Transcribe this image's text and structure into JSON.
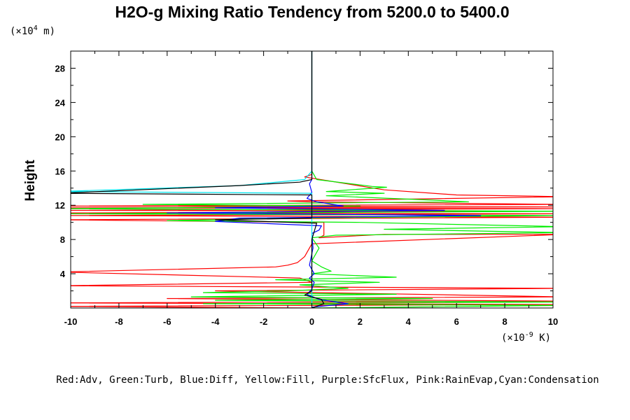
{
  "chart_data": {
    "type": "line",
    "title": "H2O-g Mixing Ratio Tendency from 5200.0 to 5400.0",
    "ylabel": "Height",
    "y_unit_prefix": "(×10",
    "y_unit_exp": "4",
    "y_unit_suffix": " m)",
    "x_unit_prefix": "(×10",
    "x_unit_exp": "-9",
    "x_unit_suffix": " K)",
    "xlim": [
      -10,
      10
    ],
    "ylim": [
      0,
      30
    ],
    "x_ticks": [
      -10,
      -8,
      -6,
      -4,
      -2,
      0,
      2,
      4,
      6,
      8,
      10
    ],
    "y_ticks": [
      4,
      8,
      12,
      16,
      20,
      24,
      28
    ],
    "legend_text": "Red:Adv, Green:Turb, Blue:Diff, Yellow:Fill, Purple:SfcFlux, Pink:RainEvap,Cyan:Condensation",
    "colors": {
      "Adv": "#ff0000",
      "Turb": "#00ee00",
      "Diff": "#0000ff",
      "Condensation": "#00e5ee",
      "Net": "#000000"
    },
    "series": [
      {
        "key": "Adv",
        "points": [
          [
            0,
            30
          ],
          [
            0,
            15.6
          ],
          [
            -0.3,
            15.3
          ],
          [
            3,
            13.8
          ],
          [
            6,
            13.2
          ],
          [
            10.5,
            13
          ],
          [
            -1,
            12.5
          ],
          [
            0,
            12.4
          ],
          [
            10.5,
            12.1
          ],
          [
            -10.5,
            11.9
          ],
          [
            10.5,
            11.8
          ],
          [
            -10.5,
            11.7
          ],
          [
            10.5,
            11.6
          ],
          [
            -10.5,
            11.4
          ],
          [
            10.5,
            11.3
          ],
          [
            -10.5,
            11.1
          ],
          [
            10.5,
            11.0
          ],
          [
            -10.5,
            10.8
          ],
          [
            10.5,
            10.6
          ],
          [
            -10.5,
            10.3
          ],
          [
            0.5,
            10.0
          ],
          [
            0.5,
            8.5
          ],
          [
            0.3,
            8.2
          ],
          [
            3,
            8.6
          ],
          [
            10.5,
            8.6
          ],
          [
            0,
            7.5
          ],
          [
            -0.3,
            6
          ],
          [
            -0.6,
            5.3
          ],
          [
            -1,
            5.0
          ],
          [
            -1.5,
            4.8
          ],
          [
            -10.5,
            4.2
          ],
          [
            -0.5,
            3.5
          ],
          [
            0,
            3.0
          ],
          [
            -10.5,
            2.6
          ],
          [
            10.5,
            2.3
          ],
          [
            -4,
            2.0
          ],
          [
            10.5,
            1.3
          ],
          [
            -6,
            1.1
          ],
          [
            10.5,
            0.8
          ],
          [
            -10.5,
            0.6
          ],
          [
            10.5,
            0.4
          ],
          [
            -10.5,
            0.2
          ],
          [
            0,
            0
          ]
        ]
      },
      {
        "key": "Turb",
        "points": [
          [
            0,
            30
          ],
          [
            0,
            16
          ],
          [
            0.2,
            15
          ],
          [
            2.5,
            14.2
          ],
          [
            3.1,
            14.1
          ],
          [
            0.6,
            13.6
          ],
          [
            3,
            13.4
          ],
          [
            0.6,
            13.1
          ],
          [
            5,
            12.6
          ],
          [
            6.5,
            12.4
          ],
          [
            -7,
            12.1
          ],
          [
            2,
            11.9
          ],
          [
            -10.5,
            11.6
          ],
          [
            10.5,
            11.3
          ],
          [
            -10.5,
            11.0
          ],
          [
            10.5,
            10.8
          ],
          [
            -1,
            10.5
          ],
          [
            -6,
            10.2
          ],
          [
            2,
            10.0
          ],
          [
            10.5,
            9.5
          ],
          [
            3,
            9.2
          ],
          [
            10.5,
            8.8
          ],
          [
            1,
            8.5
          ],
          [
            0,
            8.2
          ],
          [
            0.3,
            7
          ],
          [
            0,
            5.5
          ],
          [
            0.4,
            4.8
          ],
          [
            0.8,
            4.3
          ],
          [
            0,
            4.0
          ],
          [
            3.5,
            3.6
          ],
          [
            -1.5,
            3.3
          ],
          [
            2.8,
            3.0
          ],
          [
            -0.5,
            2.7
          ],
          [
            1.5,
            2.3
          ],
          [
            -1,
            2.0
          ],
          [
            -4.5,
            1.8
          ],
          [
            3.5,
            1.6
          ],
          [
            -5,
            1.3
          ],
          [
            5,
            1.1
          ],
          [
            -4,
            0.9
          ],
          [
            10.5,
            0.7
          ],
          [
            -4.5,
            0.5
          ],
          [
            10.5,
            0.3
          ],
          [
            0,
            0
          ]
        ]
      },
      {
        "key": "Diff",
        "points": [
          [
            0,
            30
          ],
          [
            0,
            15
          ],
          [
            -0.1,
            14.5
          ],
          [
            0,
            13.5
          ],
          [
            -0.2,
            12.8
          ],
          [
            0.2,
            12.4
          ],
          [
            1.3,
            11.9
          ],
          [
            -4,
            11.7
          ],
          [
            5.5,
            11.4
          ],
          [
            -6,
            11.1
          ],
          [
            7,
            10.8
          ],
          [
            -3,
            10.5
          ],
          [
            -4,
            10.1
          ],
          [
            0.4,
            9.6
          ],
          [
            0.3,
            9.1
          ],
          [
            0,
            8.7
          ],
          [
            0.05,
            7
          ],
          [
            -0.1,
            5
          ],
          [
            0.1,
            4
          ],
          [
            -0.1,
            3.5
          ],
          [
            0.1,
            3
          ],
          [
            0,
            2.2
          ],
          [
            -0.2,
            1.6
          ],
          [
            0.3,
            1.0
          ],
          [
            1.5,
            0.5
          ],
          [
            0,
            0.1
          ]
        ]
      },
      {
        "key": "Condensation",
        "points": [
          [
            0,
            30
          ],
          [
            0,
            16
          ],
          [
            -0.3,
            15
          ],
          [
            -3,
            14.3
          ],
          [
            -10.5,
            13.6
          ],
          [
            0,
            13.4
          ],
          [
            0,
            0
          ]
        ]
      },
      {
        "key": "Net",
        "points": [
          [
            0,
            30
          ],
          [
            0,
            15
          ],
          [
            -0.5,
            14.7
          ],
          [
            -3,
            14.3
          ],
          [
            -10.5,
            13.4
          ],
          [
            0,
            13.2
          ],
          [
            0,
            10.5
          ],
          [
            -4,
            10.3
          ],
          [
            0.2,
            9.9
          ],
          [
            0,
            8
          ],
          [
            0,
            2
          ],
          [
            -0.3,
            1.5
          ],
          [
            0.4,
            1.0
          ],
          [
            0.5,
            0.5
          ],
          [
            0,
            0
          ]
        ]
      }
    ]
  }
}
